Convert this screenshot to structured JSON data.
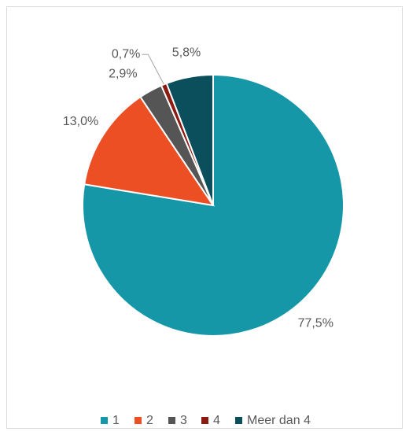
{
  "chart_data": {
    "type": "pie",
    "categories": [
      "1",
      "2",
      "3",
      "4",
      "Meer dan 4"
    ],
    "values": [
      77.5,
      13.0,
      2.9,
      0.7,
      5.8
    ],
    "value_labels": [
      "77,5%",
      "13,0%",
      "2,9%",
      "0,7%",
      "5,8%"
    ],
    "colors": [
      "#1597a8",
      "#ed4f25",
      "#555555",
      "#8b1a10",
      "#0b4f5c"
    ],
    "legend": "bottom"
  }
}
